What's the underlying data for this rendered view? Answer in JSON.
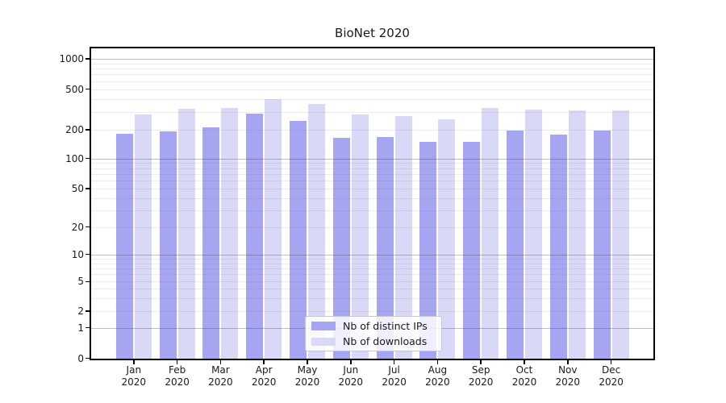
{
  "title": "BioNet 2020",
  "legend": {
    "items": [
      {
        "label": "Nb of distinct IPs",
        "color": "#a5a5f1"
      },
      {
        "label": "Nb of downloads",
        "color": "#d9d9f7"
      }
    ]
  },
  "chart_data": {
    "type": "bar",
    "title": "BioNet 2020",
    "categories": [
      "Jan",
      "Feb",
      "Mar",
      "Apr",
      "May",
      "Jun",
      "Jul",
      "Aug",
      "Sep",
      "Oct",
      "Nov",
      "Dec"
    ],
    "category_year": "2020",
    "series": [
      {
        "name": "Nb of distinct IPs",
        "color": "#a5a5f1",
        "values": [
          182,
          191,
          210,
          288,
          245,
          165,
          167,
          148,
          149,
          195,
          177,
          195
        ]
      },
      {
        "name": "Nb of downloads",
        "color": "#d9d9f7",
        "values": [
          284,
          320,
          326,
          396,
          358,
          284,
          274,
          252,
          326,
          315,
          311,
          311
        ]
      }
    ],
    "yscale": "symlog",
    "ytick_labels": [
      0,
      1,
      2,
      5,
      10,
      20,
      50,
      100,
      200,
      500,
      1000
    ],
    "ylim": [
      0,
      1200
    ],
    "grid": "on",
    "legend_position": "lower-center"
  }
}
